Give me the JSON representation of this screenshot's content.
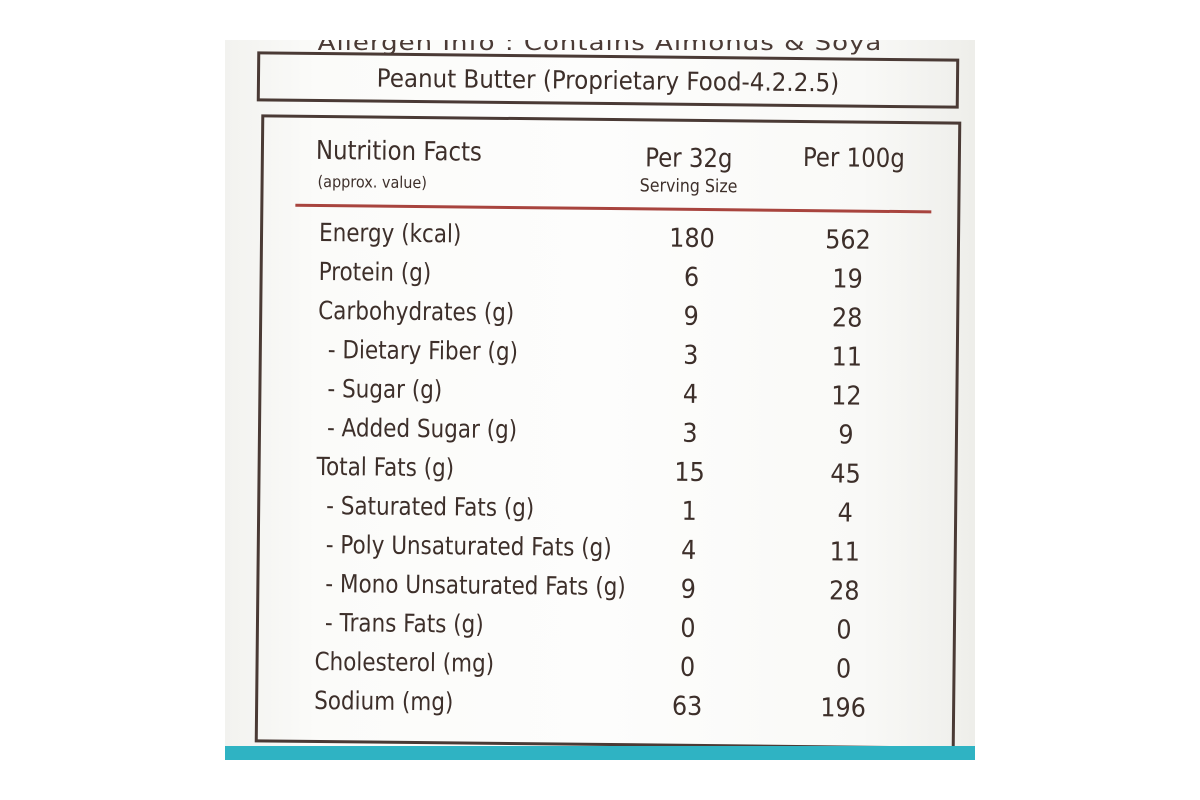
{
  "allergen_info": "Allergen Info : Contains Almonds & Soya",
  "product_title": "Peanut Butter (Proprietary Food-4.2.2.5)",
  "header": {
    "title": "Nutrition Facts",
    "subtitle": "(approx. value)",
    "col1": "Per 32g",
    "col1_sub": "Serving Size",
    "col2": "Per 100g"
  },
  "colors": {
    "rule": "#a8443e",
    "text": "#3d2f2a",
    "band": "#2fb3c3"
  },
  "rows": [
    {
      "label": "Energy (kcal)",
      "per_serving": "180",
      "per_100g": "562"
    },
    {
      "label": "Protein (g)",
      "per_serving": "6",
      "per_100g": "19"
    },
    {
      "label": "Carbohydrates (g)",
      "per_serving": "9",
      "per_100g": "28"
    },
    {
      "label": "- Dietary Fiber (g)",
      "per_serving": "3",
      "per_100g": "11"
    },
    {
      "label": "- Sugar (g)",
      "per_serving": "4",
      "per_100g": "12"
    },
    {
      "label": "- Added Sugar (g)",
      "per_serving": "3",
      "per_100g": "9"
    },
    {
      "label": "Total Fats (g)",
      "per_serving": "15",
      "per_100g": "45"
    },
    {
      "label": "- Saturated Fats (g)",
      "per_serving": "1",
      "per_100g": "4"
    },
    {
      "label": "- Poly Unsaturated Fats (g)",
      "per_serving": "4",
      "per_100g": "11"
    },
    {
      "label": "- Mono Unsaturated Fats (g)",
      "per_serving": "9",
      "per_100g": "28"
    },
    {
      "label": "- Trans Fats (g)",
      "per_serving": "0",
      "per_100g": "0"
    },
    {
      "label": "Cholesterol (mg)",
      "per_serving": "0",
      "per_100g": "0"
    },
    {
      "label": "Sodium (mg)",
      "per_serving": "63",
      "per_100g": "196"
    }
  ]
}
